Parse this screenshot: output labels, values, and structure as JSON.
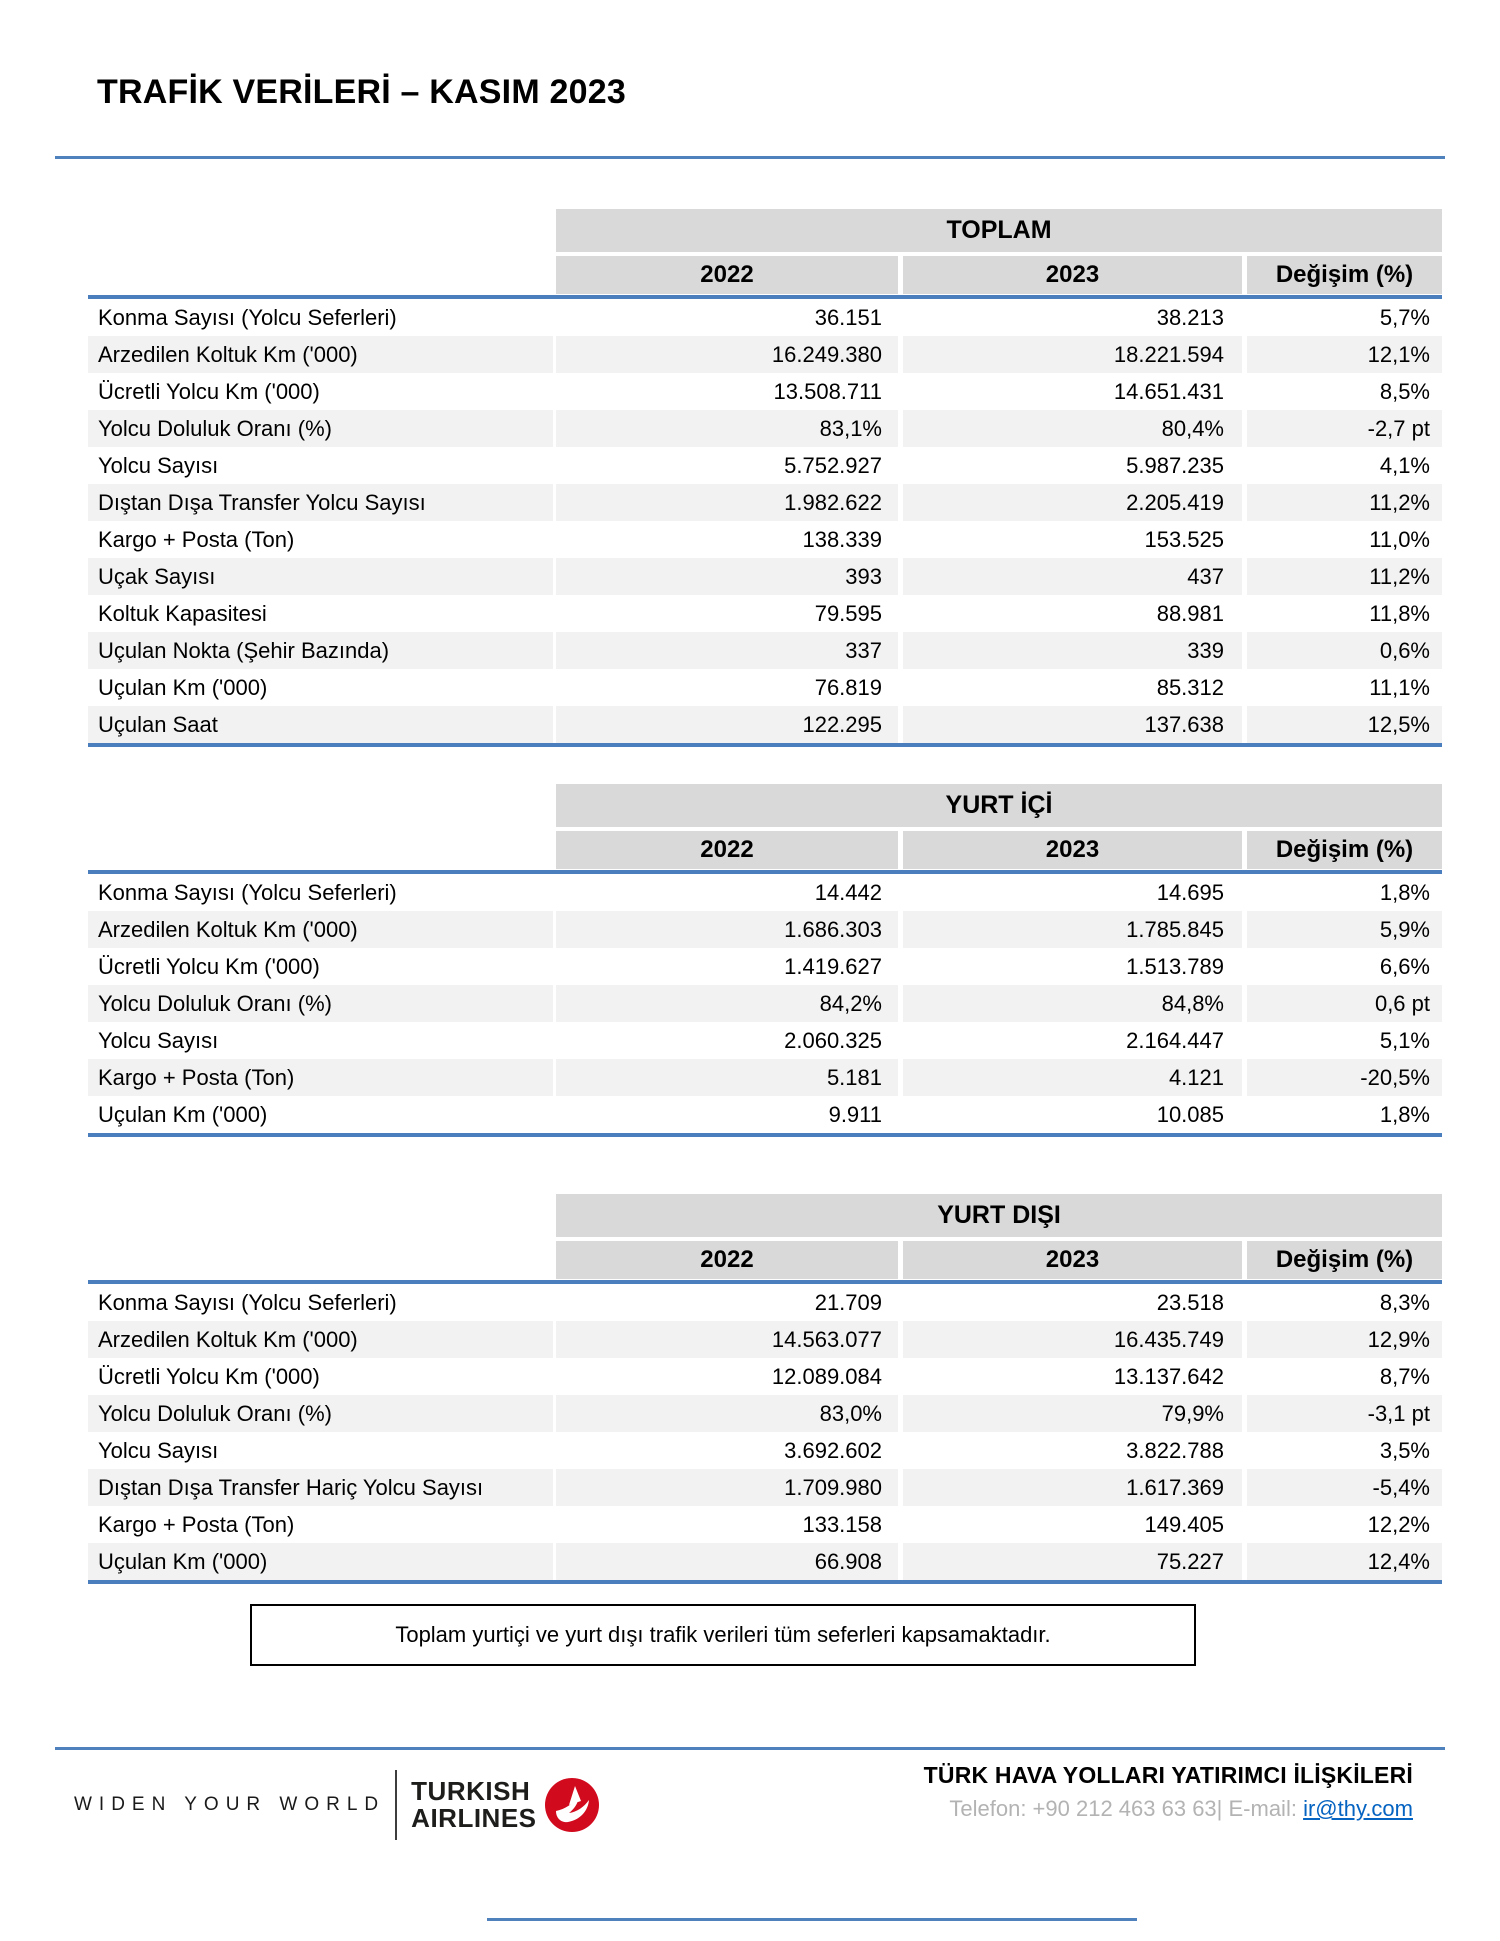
{
  "page": {
    "title": "TRAFİK VERİLERİ – KASIM 2023"
  },
  "table_headers": {
    "col_2022": "2022",
    "col_2023": "2023",
    "col_change": "Değişim (%)"
  },
  "tables": [
    {
      "title": "TOPLAM",
      "rows": [
        {
          "label": "Konma Sayısı (Yolcu Seferleri)",
          "y2022": "36.151",
          "y2023": "38.213",
          "change": "5,7%"
        },
        {
          "label": "Arzedilen Koltuk Km ('000)",
          "y2022": "16.249.380",
          "y2023": "18.221.594",
          "change": "12,1%"
        },
        {
          "label": "Ücretli Yolcu Km ('000)",
          "y2022": "13.508.711",
          "y2023": "14.651.431",
          "change": "8,5%"
        },
        {
          "label": "Yolcu Doluluk Oranı (%)",
          "y2022": "83,1%",
          "y2023": "80,4%",
          "change": "-2,7 pt"
        },
        {
          "label": "Yolcu Sayısı",
          "y2022": "5.752.927",
          "y2023": "5.987.235",
          "change": "4,1%"
        },
        {
          "label": "Dıştan Dışa Transfer Yolcu Sayısı",
          "y2022": "1.982.622",
          "y2023": "2.205.419",
          "change": "11,2%"
        },
        {
          "label": "Kargo + Posta (Ton)",
          "y2022": "138.339",
          "y2023": "153.525",
          "change": "11,0%"
        },
        {
          "label": "Uçak Sayısı",
          "y2022": "393",
          "y2023": "437",
          "change": "11,2%"
        },
        {
          "label": "Koltuk Kapasitesi",
          "y2022": "79.595",
          "y2023": "88.981",
          "change": "11,8%"
        },
        {
          "label": "Uçulan Nokta (Şehir Bazında)",
          "y2022": "337",
          "y2023": "339",
          "change": "0,6%"
        },
        {
          "label": "Uçulan Km ('000)",
          "y2022": "76.819",
          "y2023": "85.312",
          "change": "11,1%"
        },
        {
          "label": "Uçulan Saat",
          "y2022": "122.295",
          "y2023": "137.638",
          "change": "12,5%"
        }
      ]
    },
    {
      "title": "YURT İÇİ",
      "rows": [
        {
          "label": "Konma Sayısı (Yolcu Seferleri)",
          "y2022": "14.442",
          "y2023": "14.695",
          "change": "1,8%"
        },
        {
          "label": "Arzedilen Koltuk Km ('000)",
          "y2022": "1.686.303",
          "y2023": "1.785.845",
          "change": "5,9%"
        },
        {
          "label": "Ücretli Yolcu Km ('000)",
          "y2022": "1.419.627",
          "y2023": "1.513.789",
          "change": "6,6%"
        },
        {
          "label": "Yolcu Doluluk Oranı (%)",
          "y2022": "84,2%",
          "y2023": "84,8%",
          "change": "0,6 pt"
        },
        {
          "label": "Yolcu Sayısı",
          "y2022": "2.060.325",
          "y2023": "2.164.447",
          "change": "5,1%"
        },
        {
          "label": "Kargo + Posta (Ton)",
          "y2022": "5.181",
          "y2023": "4.121",
          "change": "-20,5%"
        },
        {
          "label": "Uçulan Km ('000)",
          "y2022": "9.911",
          "y2023": "10.085",
          "change": "1,8%"
        }
      ]
    },
    {
      "title": "YURT DIŞI",
      "rows": [
        {
          "label": "Konma Sayısı (Yolcu Seferleri)",
          "y2022": "21.709",
          "y2023": "23.518",
          "change": "8,3%"
        },
        {
          "label": "Arzedilen Koltuk Km ('000)",
          "y2022": "14.563.077",
          "y2023": "16.435.749",
          "change": "12,9%"
        },
        {
          "label": "Ücretli Yolcu Km ('000)",
          "y2022": "12.089.084",
          "y2023": "13.137.642",
          "change": "8,7%"
        },
        {
          "label": "Yolcu Doluluk Oranı (%)",
          "y2022": "83,0%",
          "y2023": "79,9%",
          "change": "-3,1 pt"
        },
        {
          "label": "Yolcu Sayısı",
          "y2022": "3.692.602",
          "y2023": "3.822.788",
          "change": "3,5%"
        },
        {
          "label": "Dıştan Dışa Transfer Hariç Yolcu Sayısı",
          "y2022": "1.709.980",
          "y2023": "1.617.369",
          "change": "-5,4%"
        },
        {
          "label": "Kargo + Posta (Ton)",
          "y2022": "133.158",
          "y2023": "149.405",
          "change": "12,2%"
        },
        {
          "label": "Uçulan Km ('000)",
          "y2022": "66.908",
          "y2023": "75.227",
          "change": "12,4%"
        }
      ]
    }
  ],
  "note": {
    "text": "Toplam yurtiçi ve yurt dışı trafik verileri tüm seferleri kapsamaktadır."
  },
  "footer": {
    "tagline": "WIDEN YOUR WORLD",
    "brand_line1": "TURKISH",
    "brand_line2": "AIRLINES",
    "heading": "TÜRK HAVA YOLLARI YATIRIMCI İLİŞKİLERİ",
    "contact_prefix": "Telefon: +90 212 463 63 63| E-mail: ",
    "email": "ir@thy.com"
  },
  "colors": {
    "accent_blue": "#4f81bd",
    "header_gray": "#d9d9d9",
    "stripe_gray": "#f2f2f2",
    "brand_red": "#d20a1e",
    "link_blue": "#0563c1",
    "muted_gray": "#b3b3b3"
  }
}
